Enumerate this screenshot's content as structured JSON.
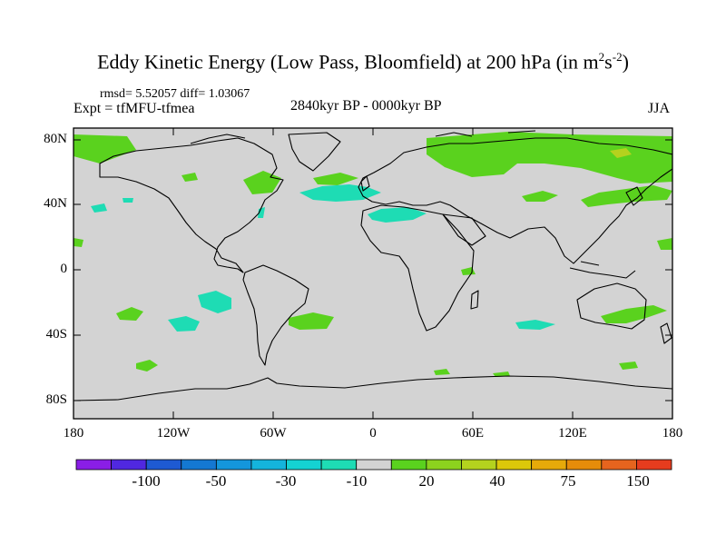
{
  "title": {
    "main": "Eddy Kinetic Energy (Low Pass, Bloomfield) at 200 hPa (in m",
    "sup1": "2",
    "mid": "s",
    "sup2": "-2",
    "end": ")"
  },
  "stats_text": "rmsd= 5.52057 diff= 1.03067",
  "expt_text": "Expt = tfMFU-tfmea",
  "period_text": "2840kyr BP - 0000kyr BP",
  "season_text": "JJA",
  "lat_labels": [
    "80N",
    "40N",
    "0",
    "40S",
    "80S"
  ],
  "lon_labels": [
    "180",
    "120W",
    "60W",
    "0",
    "60E",
    "120E",
    "180"
  ],
  "colorbar": {
    "labels": [
      "-100",
      "-50",
      "-30",
      "-10",
      "20",
      "40",
      "75",
      "150"
    ],
    "colors": [
      "#8a1ee6",
      "#5028e0",
      "#1e5ad2",
      "#1478d2",
      "#1496dc",
      "#14b4dc",
      "#14d2d2",
      "#1edcb4",
      "#d3d3d3",
      "#5ad21e",
      "#8cd21e",
      "#b4d21e",
      "#dcc80a",
      "#e6aa0a",
      "#e68c0a",
      "#e6641e",
      "#e63c1e"
    ]
  },
  "colors": {
    "land_background": "#d3d3d3",
    "positive_anomaly": "#5ad21e",
    "negative_anomaly": "#1edcb4",
    "strong_positive": "#b4d21e"
  }
}
